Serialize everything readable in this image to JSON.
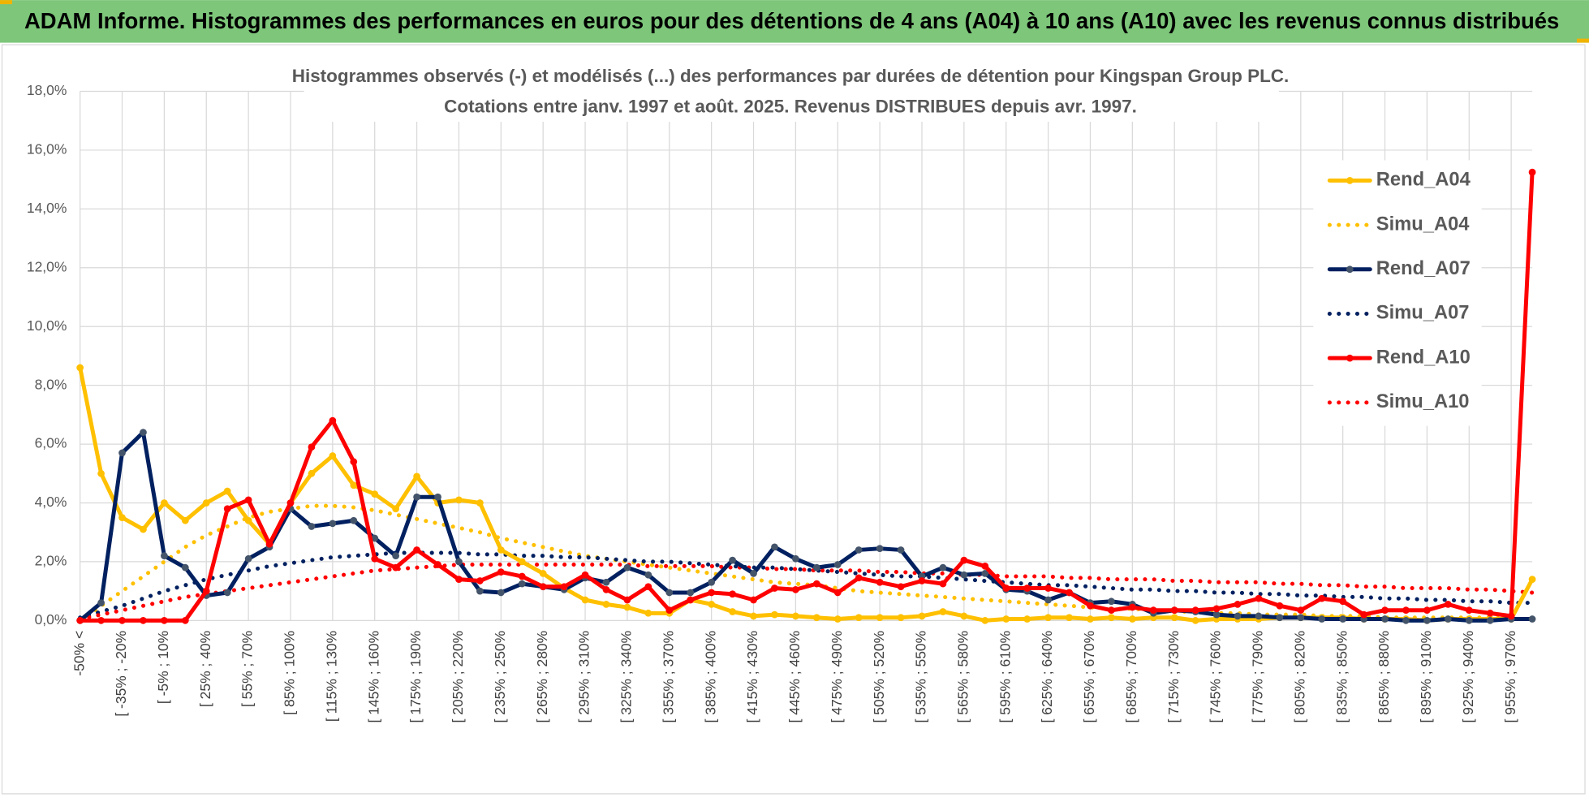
{
  "header": {
    "title": "ADAM Informe. Histogrammes des performances en euros pour des détentions de 4 ans (A04) à 10 ans (A10) avec les revenus connus distribués"
  },
  "chart_data": {
    "type": "line",
    "title": "Histogrammes observés (-) et modélisés (...) des performances par durées de détention pour Kingspan Group PLC.",
    "subtitle": "Cotations entre janv. 1997 et août. 2025. Revenus DISTRIBUES depuis avr. 1997.",
    "categories": [
      "-50% <",
      null,
      "[ -35% ; -20%",
      null,
      "[ -5% ; 10%",
      null,
      "[ 25% ; 40%",
      null,
      "[ 55% ; 70%",
      null,
      "[ 85% ; 100%",
      null,
      "[ 115% ; 130%",
      null,
      "[ 145% ; 160%",
      null,
      "[ 175% ; 190%",
      null,
      "[ 205% ; 220%",
      null,
      "[ 235% ; 250%",
      null,
      "[ 265% ; 280%",
      null,
      "[ 295% ; 310%",
      null,
      "[ 325% ; 340%",
      null,
      "[ 355% ; 370%",
      null,
      "[ 385% ; 400%",
      null,
      "[ 415% ; 430%",
      null,
      "[ 445% ; 460%",
      null,
      "[ 475% ; 490%",
      null,
      "[ 505% ; 520%",
      null,
      "[ 535% ; 550%",
      null,
      "[ 565% ; 580%",
      null,
      "[ 595% ; 610%",
      null,
      "[ 625% ; 640%",
      null,
      "[ 655% ; 670%",
      null,
      "[ 685% ; 700%",
      null,
      "[ 715% ; 730%",
      null,
      "[ 745% ; 760%",
      null,
      "[ 775% ; 790%",
      null,
      "[ 805% ; 820%",
      null,
      "[ 835% ; 850%",
      null,
      "[ 865% ; 880%",
      null,
      "[ 895% ; 910%",
      null,
      "[ 925% ; 940%",
      null,
      "[ 955% ; 970%",
      null
    ],
    "series": [
      {
        "name": "Rend_A04",
        "color": "#FFC000",
        "style": "solid",
        "values": [
          8.6,
          5.0,
          3.5,
          3.1,
          4.0,
          3.4,
          4.0,
          4.4,
          3.4,
          2.6,
          4.0,
          5.0,
          5.6,
          4.6,
          4.3,
          3.8,
          4.9,
          4.0,
          4.1,
          4.0,
          2.4,
          2.0,
          1.6,
          1.1,
          0.7,
          0.55,
          0.45,
          0.25,
          0.25,
          0.7,
          0.55,
          0.3,
          0.15,
          0.2,
          0.15,
          0.1,
          0.05,
          0.1,
          0.1,
          0.1,
          0.15,
          0.3,
          0.15,
          0.0,
          0.05,
          0.05,
          0.1,
          0.1,
          0.05,
          0.1,
          0.05,
          0.1,
          0.1,
          0.0,
          0.05,
          0.05,
          0.05,
          0.1,
          0.1,
          0.1,
          0.1,
          0.05,
          0.05,
          0.05,
          0.0,
          0.05,
          0.05,
          0.05,
          0.05,
          1.4
        ]
      },
      {
        "name": "Simu_A04",
        "color": "#FFC000",
        "style": "dotted",
        "values": [
          0,
          0.5,
          1.0,
          1.5,
          2.0,
          2.5,
          2.9,
          3.2,
          3.5,
          3.7,
          3.8,
          3.9,
          3.9,
          3.85,
          3.75,
          3.6,
          3.45,
          3.3,
          3.15,
          3.0,
          2.8,
          2.65,
          2.5,
          2.35,
          2.2,
          2.1,
          2.0,
          1.9,
          1.8,
          1.7,
          1.6,
          1.5,
          1.4,
          1.3,
          1.25,
          1.2,
          1.1,
          1.0,
          0.95,
          0.9,
          0.85,
          0.8,
          0.75,
          0.7,
          0.65,
          0.6,
          0.55,
          0.5,
          0.45,
          0.4,
          0.4,
          0.35,
          0.3,
          0.3,
          0.25,
          0.25,
          0.2,
          0.2,
          0.2,
          0.15,
          0.15,
          0.15,
          0.1,
          0.1,
          0.1,
          0.1,
          0.1,
          0.1,
          0.05,
          0.05
        ]
      },
      {
        "name": "Rend_A07",
        "color": "#002060",
        "style": "solid",
        "values": [
          0,
          0.6,
          5.7,
          6.4,
          2.2,
          1.8,
          0.85,
          0.95,
          2.1,
          2.5,
          3.8,
          3.2,
          3.3,
          3.4,
          2.8,
          2.2,
          4.2,
          4.2,
          2.0,
          1.0,
          0.95,
          1.25,
          1.15,
          1.05,
          1.45,
          1.3,
          1.8,
          1.55,
          0.95,
          0.95,
          1.3,
          2.05,
          1.6,
          2.5,
          2.1,
          1.8,
          1.9,
          2.4,
          2.45,
          2.4,
          1.5,
          1.8,
          1.55,
          1.6,
          1.05,
          1.0,
          0.7,
          0.95,
          0.6,
          0.65,
          0.55,
          0.25,
          0.35,
          0.3,
          0.2,
          0.15,
          0.15,
          0.1,
          0.1,
          0.05,
          0.05,
          0.05,
          0.05,
          0.0,
          0.0,
          0.05,
          0.0,
          0.0,
          0.05,
          0.05
        ]
      },
      {
        "name": "Simu_A07",
        "color": "#002060",
        "style": "dotted",
        "values": [
          0.1,
          0.3,
          0.5,
          0.75,
          1.0,
          1.2,
          1.4,
          1.55,
          1.7,
          1.85,
          1.95,
          2.05,
          2.15,
          2.2,
          2.25,
          2.3,
          2.3,
          2.3,
          2.3,
          2.25,
          2.25,
          2.2,
          2.2,
          2.15,
          2.15,
          2.1,
          2.05,
          2.0,
          2.0,
          1.95,
          1.9,
          1.85,
          1.8,
          1.8,
          1.75,
          1.7,
          1.65,
          1.6,
          1.55,
          1.5,
          1.5,
          1.45,
          1.4,
          1.35,
          1.3,
          1.25,
          1.2,
          1.2,
          1.15,
          1.1,
          1.05,
          1.05,
          1.0,
          1.0,
          0.95,
          0.95,
          0.9,
          0.9,
          0.85,
          0.85,
          0.8,
          0.8,
          0.75,
          0.75,
          0.7,
          0.7,
          0.65,
          0.65,
          0.6,
          0.6
        ]
      },
      {
        "name": "Rend_A10",
        "color": "#FF0000",
        "style": "solid",
        "values": [
          0,
          0,
          0,
          0,
          0,
          0,
          1.0,
          3.8,
          4.1,
          2.6,
          4.0,
          5.9,
          6.8,
          5.4,
          2.1,
          1.8,
          2.4,
          1.9,
          1.4,
          1.35,
          1.65,
          1.5,
          1.15,
          1.15,
          1.55,
          1.05,
          0.7,
          1.15,
          0.35,
          0.7,
          0.95,
          0.9,
          0.7,
          1.1,
          1.05,
          1.25,
          0.95,
          1.45,
          1.3,
          1.15,
          1.35,
          1.25,
          2.05,
          1.85,
          1.1,
          1.1,
          1.1,
          0.95,
          0.5,
          0.35,
          0.45,
          0.35,
          0.35,
          0.35,
          0.4,
          0.55,
          0.75,
          0.5,
          0.35,
          0.75,
          0.65,
          0.2,
          0.35,
          0.35,
          0.35,
          0.55,
          0.35,
          0.25,
          0.15,
          15.25
        ]
      },
      {
        "name": "Simu_A10",
        "color": "#FF0000",
        "style": "dotted",
        "values": [
          0.05,
          0.2,
          0.35,
          0.5,
          0.65,
          0.8,
          0.9,
          1.0,
          1.1,
          1.2,
          1.3,
          1.4,
          1.5,
          1.6,
          1.7,
          1.75,
          1.8,
          1.85,
          1.9,
          1.9,
          1.9,
          1.9,
          1.9,
          1.9,
          1.9,
          1.9,
          1.9,
          1.85,
          1.85,
          1.85,
          1.85,
          1.8,
          1.8,
          1.75,
          1.75,
          1.7,
          1.7,
          1.7,
          1.65,
          1.65,
          1.6,
          1.6,
          1.55,
          1.55,
          1.5,
          1.5,
          1.5,
          1.45,
          1.45,
          1.4,
          1.4,
          1.4,
          1.35,
          1.35,
          1.3,
          1.3,
          1.3,
          1.25,
          1.25,
          1.2,
          1.2,
          1.15,
          1.15,
          1.1,
          1.1,
          1.1,
          1.05,
          1.05,
          1.0,
          0.95
        ]
      }
    ],
    "ylim": [
      0,
      18
    ],
    "yticks": [
      {
        "value": 0,
        "label": "0,0%"
      },
      {
        "value": 2,
        "label": "2,0%"
      },
      {
        "value": 4,
        "label": "4,0%"
      },
      {
        "value": 6,
        "label": "6,0%"
      },
      {
        "value": 8,
        "label": "8,0%"
      },
      {
        "value": 10,
        "label": "10,0%"
      },
      {
        "value": 12,
        "label": "12,0%"
      },
      {
        "value": 14,
        "label": "14,0%"
      },
      {
        "value": 16,
        "label": "16,0%"
      },
      {
        "value": 18,
        "label": "18,0%"
      }
    ],
    "grid": true,
    "legend": "right"
  }
}
